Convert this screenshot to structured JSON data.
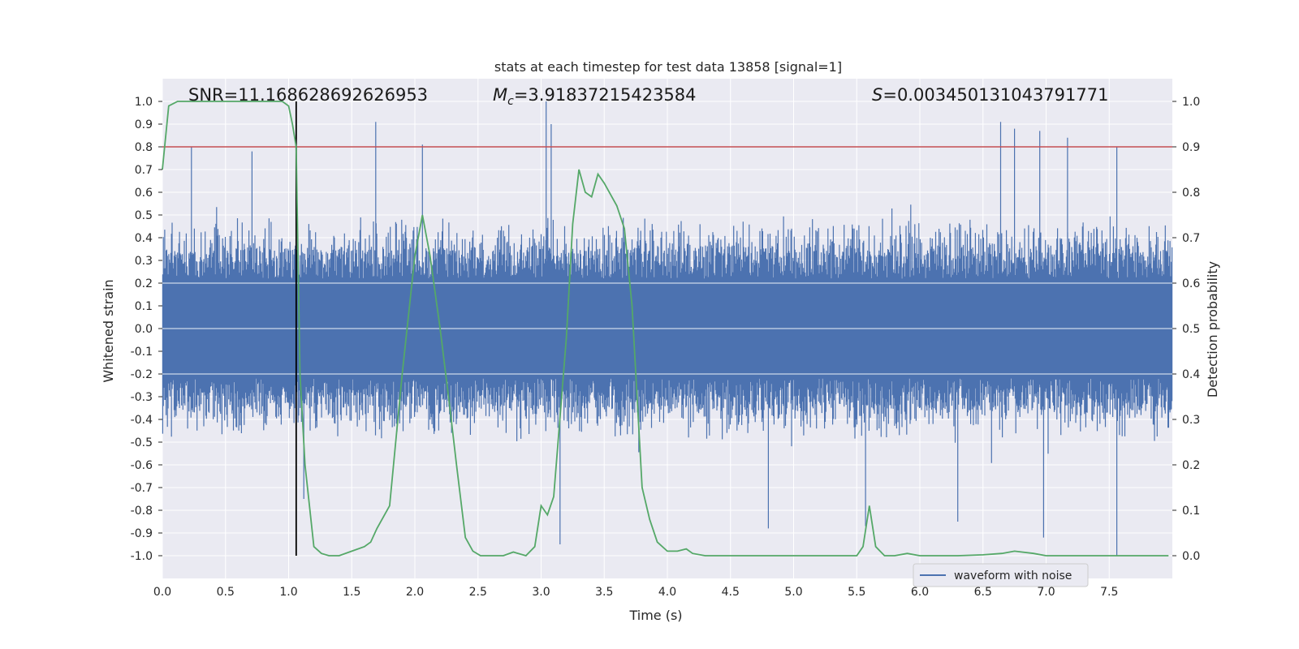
{
  "chart_data": {
    "type": "line",
    "title": "stats at each timestep for test data 13858 [signal=1]",
    "xlabel": "Time (s)",
    "ylabel": "Whitened strain",
    "y2label": "Detection probability",
    "xlim": [
      0.0,
      8.0
    ],
    "ylim": [
      -1.1,
      1.1
    ],
    "y2lim": [
      -0.05,
      1.05
    ],
    "x_ticks": [
      "0.0",
      "0.5",
      "1.0",
      "1.5",
      "2.0",
      "2.5",
      "3.0",
      "3.5",
      "4.0",
      "4.5",
      "5.0",
      "5.5",
      "6.0",
      "6.5",
      "7.0",
      "7.5"
    ],
    "y_ticks": [
      "1.0",
      "0.9",
      "0.8",
      "0.7",
      "0.6",
      "0.5",
      "0.4",
      "0.3",
      "0.2",
      "0.1",
      "0.0",
      "-0.1",
      "-0.2",
      "-0.3",
      "-0.4",
      "-0.5",
      "-0.6",
      "-0.7",
      "-0.8",
      "-0.9",
      "-1.0"
    ],
    "y2_ticks": [
      "1.0",
      "0.9",
      "0.8",
      "0.7",
      "0.6",
      "0.5",
      "0.4",
      "0.3",
      "0.2",
      "0.1",
      "0.0"
    ],
    "annotations": {
      "snr": "SNR=11.168628692626953",
      "mc_symbol": "M",
      "mc_subscript": "c",
      "mc_value": "=3.91837215423584",
      "s_symbol": "S",
      "s_value": "=0.003450131043791771"
    },
    "threshold": {
      "value": 0.9,
      "axis": "right",
      "color": "#c44e52"
    },
    "merger_time": 1.06,
    "waveform": {
      "name": "waveform with noise",
      "color": "#4c72b0",
      "core_band": [
        -0.2,
        0.2
      ],
      "notable_peaks": [
        {
          "x": 0.23,
          "y": 0.8
        },
        {
          "x": 0.71,
          "y": 0.78
        },
        {
          "x": 1.69,
          "y": 0.91
        },
        {
          "x": 2.06,
          "y": 0.81
        },
        {
          "x": 3.04,
          "y": 1.0
        },
        {
          "x": 3.08,
          "y": 0.9
        },
        {
          "x": 6.64,
          "y": 0.91
        },
        {
          "x": 6.75,
          "y": 0.88
        },
        {
          "x": 6.95,
          "y": 0.87
        },
        {
          "x": 7.17,
          "y": 0.84
        },
        {
          "x": 7.56,
          "y": 0.8
        }
      ],
      "notable_troughs": [
        {
          "x": 1.12,
          "y": -0.75
        },
        {
          "x": 3.15,
          "y": -0.95
        },
        {
          "x": 4.8,
          "y": -0.88
        },
        {
          "x": 5.57,
          "y": -0.87
        },
        {
          "x": 6.3,
          "y": -0.85
        },
        {
          "x": 6.98,
          "y": -0.92
        },
        {
          "x": 7.56,
          "y": -1.0
        }
      ]
    },
    "series": [
      {
        "name": "detection probability",
        "axis": "right",
        "color": "#55a868",
        "x": [
          0.0,
          0.05,
          0.12,
          0.2,
          0.4,
          0.6,
          0.8,
          0.95,
          1.0,
          1.03,
          1.06,
          1.09,
          1.13,
          1.2,
          1.26,
          1.32,
          1.4,
          1.5,
          1.6,
          1.65,
          1.7,
          1.8,
          1.9,
          2.0,
          2.06,
          2.12,
          2.2,
          2.28,
          2.33,
          2.4,
          2.46,
          2.52,
          2.6,
          2.7,
          2.78,
          2.88,
          2.95,
          3.0,
          3.05,
          3.1,
          3.2,
          3.25,
          3.3,
          3.35,
          3.4,
          3.45,
          3.5,
          3.6,
          3.66,
          3.72,
          3.8,
          3.86,
          3.92,
          4.0,
          4.08,
          4.15,
          4.2,
          4.3,
          4.5,
          5.0,
          5.3,
          5.5,
          5.55,
          5.6,
          5.65,
          5.72,
          5.8,
          5.9,
          6.0,
          6.3,
          6.5,
          6.65,
          6.75,
          6.9,
          7.0,
          7.3,
          7.5,
          7.7,
          7.97
        ],
        "values": [
          0.85,
          0.99,
          1.0,
          1.0,
          1.0,
          1.0,
          1.0,
          1.0,
          0.99,
          0.95,
          0.9,
          0.4,
          0.2,
          0.02,
          0.005,
          0.0,
          0.0,
          0.01,
          0.02,
          0.03,
          0.06,
          0.11,
          0.4,
          0.66,
          0.75,
          0.66,
          0.5,
          0.32,
          0.2,
          0.04,
          0.01,
          0.0,
          0.0,
          0.0,
          0.008,
          0.0,
          0.02,
          0.11,
          0.09,
          0.13,
          0.48,
          0.73,
          0.85,
          0.8,
          0.79,
          0.84,
          0.82,
          0.77,
          0.72,
          0.55,
          0.15,
          0.08,
          0.03,
          0.01,
          0.01,
          0.015,
          0.005,
          0.0,
          0.0,
          0.0,
          0.0,
          0.0,
          0.02,
          0.11,
          0.02,
          0.0,
          0.0,
          0.005,
          0.0,
          0.0,
          0.002,
          0.005,
          0.01,
          0.005,
          0.0,
          0.0,
          0.0,
          0.0,
          0.0
        ]
      }
    ],
    "legend": {
      "position": "lower-right",
      "entries": [
        "waveform with noise"
      ]
    }
  }
}
